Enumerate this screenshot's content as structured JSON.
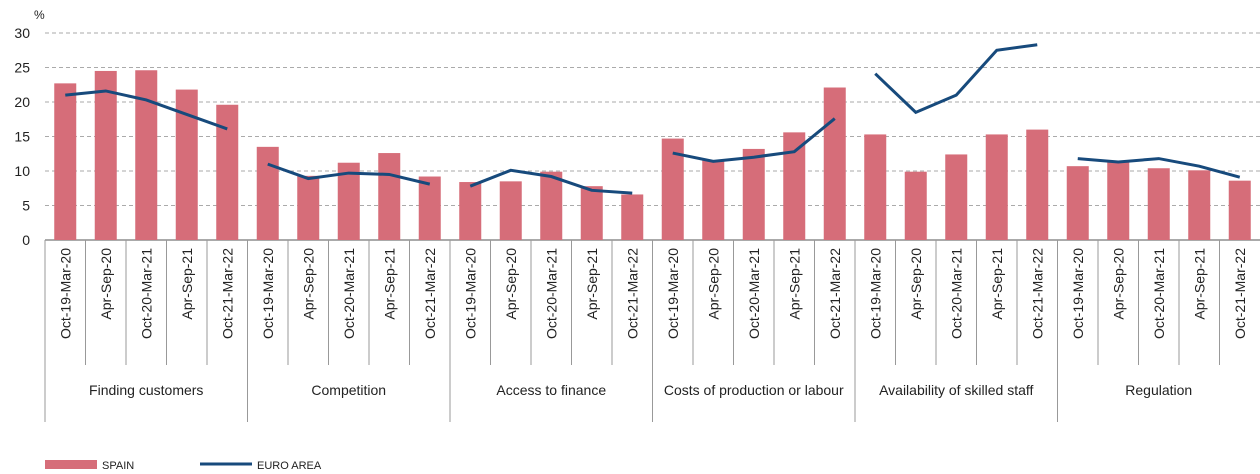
{
  "chart_data": {
    "type": "bar",
    "y_unit": "%",
    "categories": [
      "Oct-19-Mar-20",
      "Apr-Sep-20",
      "Oct-20-Mar-21",
      "Apr-Sep-21",
      "Oct-21-Mar-22",
      "Oct-19-Mar-20",
      "Apr-Sep-20",
      "Oct-20-Mar-21",
      "Apr-Sep-21",
      "Oct-21-Mar-22",
      "Oct-19-Mar-20",
      "Apr-Sep-20",
      "Oct-20-Mar-21",
      "Apr-Sep-21",
      "Oct-21-Mar-22",
      "Oct-19-Mar-20",
      "Apr-Sep-20",
      "Oct-20-Mar-21",
      "Apr-Sep-21",
      "Oct-21-Mar-22",
      "Oct-19-Mar-20",
      "Apr-Sep-20",
      "Oct-20-Mar-21",
      "Apr-Sep-21",
      "Oct-21-Mar-22",
      "Oct-19-Mar-20",
      "Apr-Sep-20",
      "Oct-20-Mar-21",
      "Apr-Sep-21",
      "Oct-21-Mar-22"
    ],
    "groups": [
      "Finding customers",
      "Competition",
      "Access to finance",
      "Costs of production or labour",
      "Availability of skilled staff",
      "Regulation"
    ],
    "series": [
      {
        "name": "SPAIN",
        "kind": "bar",
        "color": "#d66d79",
        "values": [
          22.7,
          24.5,
          24.6,
          21.8,
          19.6,
          13.5,
          9.3,
          11.2,
          12.6,
          9.2,
          8.4,
          8.5,
          9.9,
          7.8,
          6.6,
          14.7,
          11.6,
          13.2,
          15.6,
          22.1,
          15.3,
          9.9,
          12.4,
          15.3,
          16.0,
          10.7,
          11.3,
          10.4,
          10.1,
          8.6
        ]
      },
      {
        "name": "EURO AREA",
        "kind": "line",
        "color": "#174a7c",
        "values": [
          21.0,
          21.6,
          20.3,
          18.2,
          16.1,
          11.0,
          8.9,
          9.7,
          9.5,
          8.1,
          7.8,
          10.1,
          9.2,
          7.2,
          6.8,
          12.6,
          11.4,
          12.0,
          12.8,
          17.6,
          24.1,
          18.5,
          21.0,
          27.5,
          28.3,
          11.8,
          11.3,
          11.8,
          10.7,
          9.1
        ]
      }
    ],
    "ylim": [
      0,
      30
    ],
    "yticks": [
      0,
      5,
      10,
      15,
      20,
      25,
      30
    ],
    "grid": true
  }
}
